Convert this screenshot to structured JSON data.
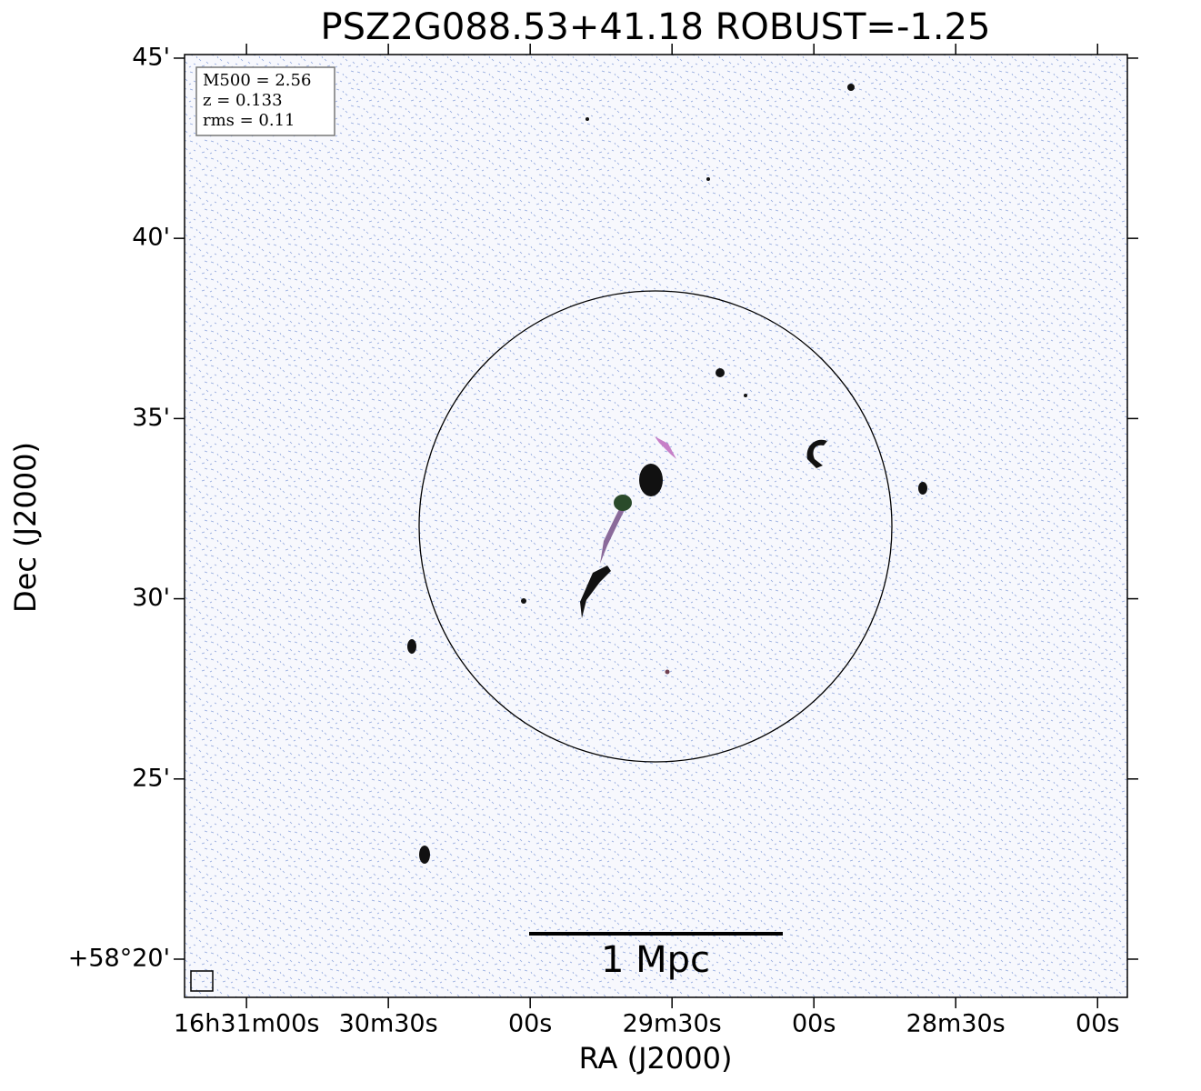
{
  "chart_data": {
    "type": "image",
    "title": "PSZ2G088.53+41.18 ROBUST=-1.25",
    "x_label": "RA (J2000)",
    "y_label": "Dec (J2000)",
    "xlim": [
      193.1,
      -6.3
    ],
    "xticks": [
      {
        "value": 180,
        "label": "16h31m00s"
      },
      {
        "value": 150,
        "label": "30m30s"
      },
      {
        "value": 120,
        "label": "00s"
      },
      {
        "value": 90,
        "label": "29m30s"
      },
      {
        "value": 60,
        "label": "00s"
      },
      {
        "value": 30,
        "label": "28m30s"
      },
      {
        "value": 0,
        "label": "00s"
      }
    ],
    "ylim": [
      18.94,
      45.1
    ],
    "yticks": [
      {
        "value": 20,
        "label": "+58°20'"
      },
      {
        "value": 25,
        "label": "25'"
      },
      {
        "value": 30,
        "label": "30'"
      },
      {
        "value": 35,
        "label": "35'"
      },
      {
        "value": 40,
        "label": "40'"
      },
      {
        "value": 45,
        "label": "45'"
      }
    ],
    "annotations": [
      "M500 = 2.56",
      "z = 0.133",
      "rms = 0.11"
    ],
    "scale_bar_label": "1 Mpc"
  }
}
